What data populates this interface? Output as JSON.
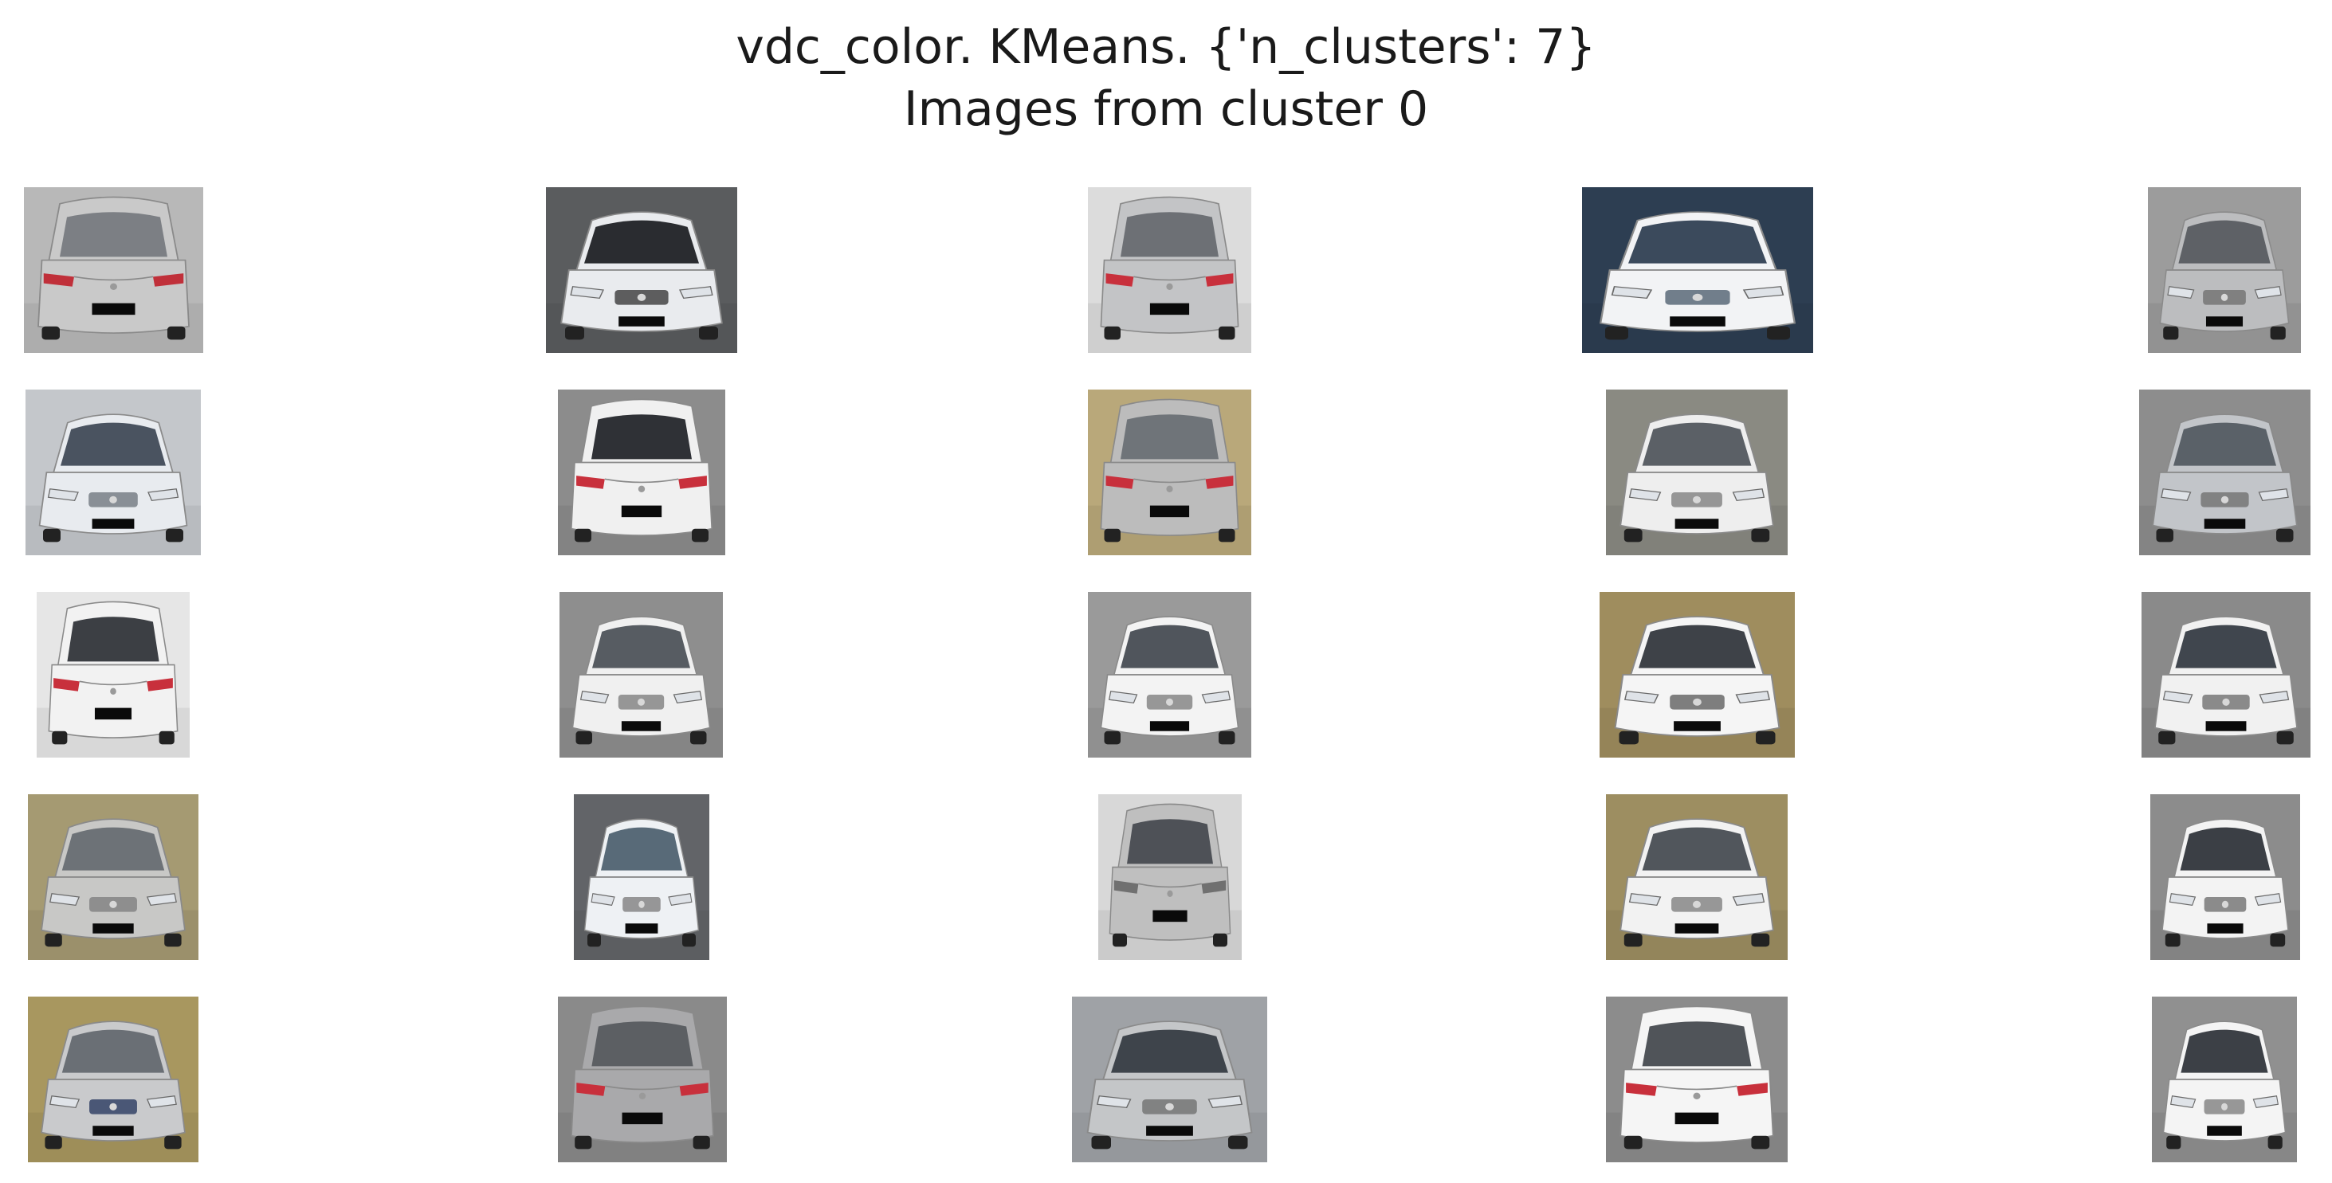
{
  "figure": {
    "title_line_1": "vdc_color. KMeans. {'n_clusters': 7}",
    "title_line_2": "Images from cluster 0"
  },
  "grid": {
    "rows": 5,
    "cols": 5,
    "images": [
      {
        "view": "rear",
        "car_color": "#c9c9c9",
        "bg_color": "#b8b8b8",
        "glass_color": "#7c7f84",
        "accent": "#c0303a"
      },
      {
        "view": "front",
        "car_color": "#e9ebee",
        "bg_color": "#5a5c5e",
        "glass_color": "#2a2c30",
        "accent": "#3a3a3a"
      },
      {
        "view": "rear",
        "car_color": "#c3c4c6",
        "bg_color": "#dcdcdc",
        "glass_color": "#6d7075",
        "accent": "#c8303c"
      },
      {
        "view": "front",
        "car_color": "#f2f3f5",
        "bg_color": "#2d3e52",
        "glass_color": "#3b4a5c",
        "accent": "#506070"
      },
      {
        "view": "front",
        "car_color": "#bcbdbf",
        "bg_color": "#9c9c9c",
        "glass_color": "#5e6166",
        "accent": "#707070"
      },
      {
        "view": "front",
        "car_color": "#e8ebef",
        "bg_color": "#c4c7cb",
        "glass_color": "#4a5360",
        "accent": "#707880"
      },
      {
        "view": "rear",
        "car_color": "#f0f0f0",
        "bg_color": "#8c8c8c",
        "glass_color": "#2f3136",
        "accent": "#c8303c"
      },
      {
        "view": "rear",
        "car_color": "#bcbcbc",
        "bg_color": "#b9a87a",
        "glass_color": "#6f7479",
        "accent": "#c8303c"
      },
      {
        "view": "front",
        "car_color": "#eeeeee",
        "bg_color": "#8a8a82",
        "glass_color": "#5b6066",
        "accent": "#808080"
      },
      {
        "view": "front",
        "car_color": "#c2c5c9",
        "bg_color": "#8d8d8d",
        "glass_color": "#5a6168",
        "accent": "#707070"
      },
      {
        "view": "rear",
        "car_color": "#f2f2f2",
        "bg_color": "#e6e6e6",
        "glass_color": "#3c3f44",
        "accent": "#c8303c"
      },
      {
        "view": "front",
        "car_color": "#f0f0f0",
        "bg_color": "#8e8e8e",
        "glass_color": "#575c62",
        "accent": "#808080"
      },
      {
        "view": "front",
        "car_color": "#f3f3f3",
        "bg_color": "#9a9a9a",
        "glass_color": "#50555c",
        "accent": "#808080"
      },
      {
        "view": "front",
        "car_color": "#f5f5f5",
        "bg_color": "#9f8d5e",
        "glass_color": "#3e4248",
        "accent": "#606060"
      },
      {
        "view": "front",
        "car_color": "#f1f1f1",
        "bg_color": "#8a8a8a",
        "glass_color": "#40464e",
        "accent": "#707070"
      },
      {
        "view": "front",
        "car_color": "#c8c8c6",
        "bg_color": "#a59a72",
        "glass_color": "#6d7277",
        "accent": "#808080"
      },
      {
        "view": "front",
        "car_color": "#eef1f4",
        "bg_color": "#626468",
        "glass_color": "#586a78",
        "accent": "#808080"
      },
      {
        "view": "rear",
        "car_color": "#bfbfbf",
        "bg_color": "#d8d8d8",
        "glass_color": "#4e5157",
        "accent": "#707070"
      },
      {
        "view": "front",
        "car_color": "#f2f2f2",
        "bg_color": "#9d8e61",
        "glass_color": "#51565c",
        "accent": "#808080"
      },
      {
        "view": "front",
        "car_color": "#f3f3f3",
        "bg_color": "#8c8c8c",
        "glass_color": "#3b3f45",
        "accent": "#707070"
      },
      {
        "view": "front",
        "car_color": "#c9cacc",
        "bg_color": "#a8975f",
        "glass_color": "#6a6f75",
        "accent": "#2a3a60"
      },
      {
        "view": "rear",
        "car_color": "#a9a9ab",
        "bg_color": "#8a8a8a",
        "glass_color": "#5c5f63",
        "accent": "#c8303c"
      },
      {
        "view": "front",
        "car_color": "#c4c6c8",
        "bg_color": "#9fa2a6",
        "glass_color": "#3e444b",
        "accent": "#707070"
      },
      {
        "view": "rear",
        "car_color": "#f5f5f5",
        "bg_color": "#8c8c8c",
        "glass_color": "#505459",
        "accent": "#c8303c"
      },
      {
        "view": "front",
        "car_color": "#f4f4f4",
        "bg_color": "#909090",
        "glass_color": "#3c4046",
        "accent": "#808080"
      }
    ]
  }
}
